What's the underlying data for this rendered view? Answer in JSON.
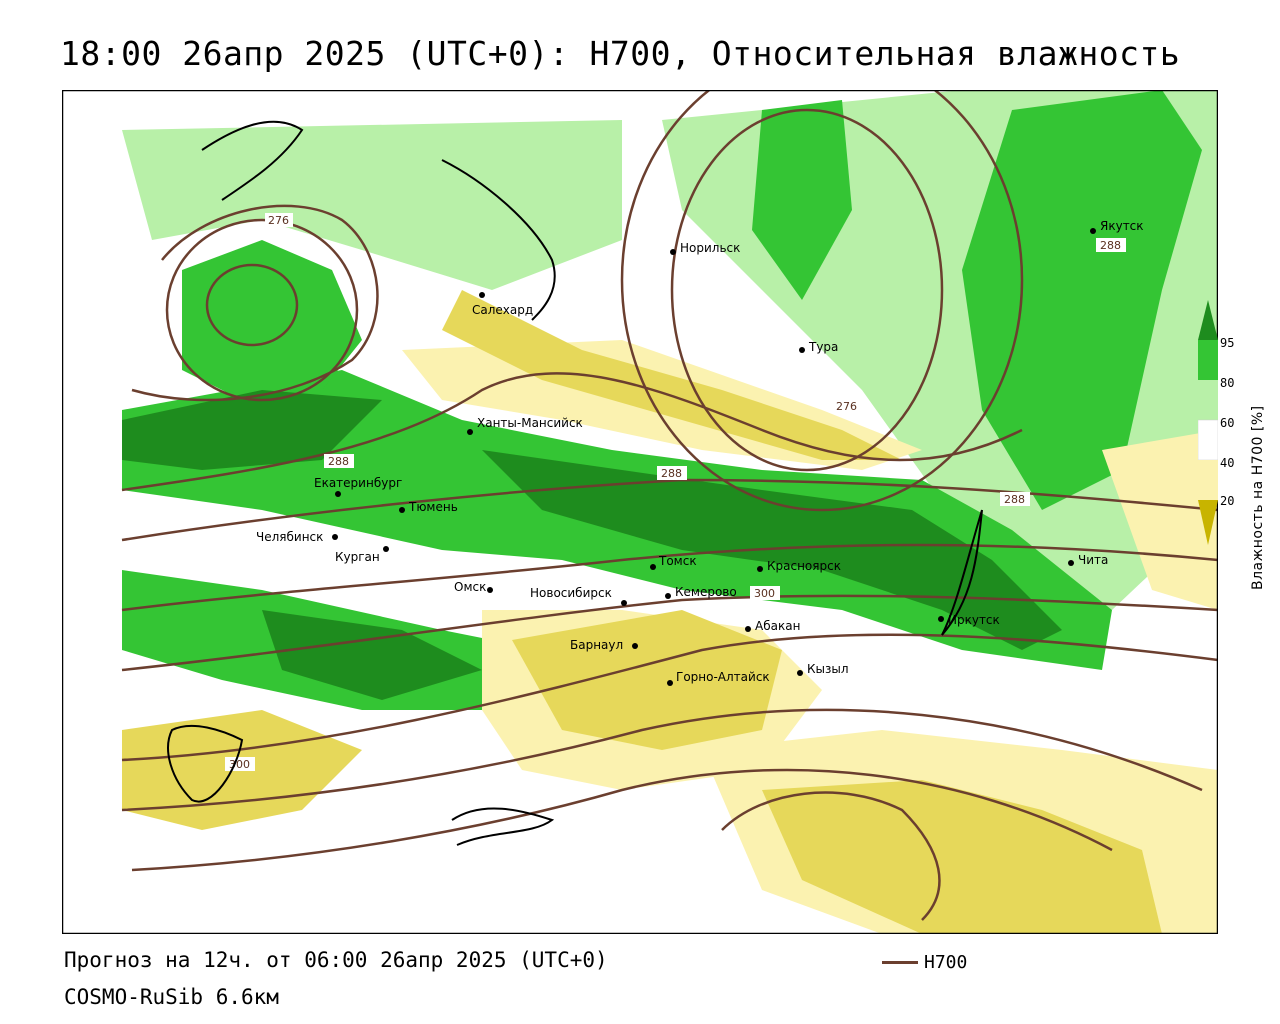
{
  "title": "18:00 26апр 2025 (UTC+0): H700, Относительная влажность",
  "footer": {
    "forecast": "Прогноз на 12ч. от 06:00 26апр 2025 (UTC+0)",
    "model": "COSMO-RuSib 6.6км",
    "contour_key": "H700"
  },
  "legend": {
    "title": "Влажность на H700 [%]",
    "ticks": [
      "95",
      "80",
      "60",
      "40",
      "20"
    ],
    "colors": [
      "#1e8c1e",
      "#34c534",
      "#b8f0a8",
      "#ffffff",
      "#fbf2b0",
      "#e6d85a",
      "#c8b400"
    ]
  },
  "contour_labels": [
    "276",
    "288",
    "276",
    "288",
    "288",
    "288",
    "300",
    "300"
  ],
  "cities": [
    {
      "name": "Якутск"
    },
    {
      "name": "Норильск"
    },
    {
      "name": "Салехард"
    },
    {
      "name": "Тура"
    },
    {
      "name": "Ханты-Мансийск"
    },
    {
      "name": "Екатеринбург"
    },
    {
      "name": "Тюмень"
    },
    {
      "name": "Челябинск"
    },
    {
      "name": "Курган"
    },
    {
      "name": "Омск"
    },
    {
      "name": "Томск"
    },
    {
      "name": "Красноярск"
    },
    {
      "name": "Новосибирск"
    },
    {
      "name": "Кемерово"
    },
    {
      "name": "Абакан"
    },
    {
      "name": "Барнаул"
    },
    {
      "name": "Горно-Алтайск"
    },
    {
      "name": "Кызыл"
    },
    {
      "name": "Иркутск"
    },
    {
      "name": "Чита"
    }
  ],
  "colors": {
    "contour": "#6b3f2f",
    "green_dark": "#1e8c1e",
    "green": "#34c534",
    "green_light": "#b8f0a8",
    "yellow_light": "#fbf2b0",
    "yellow": "#e6d85a",
    "olive": "#c8b400"
  }
}
